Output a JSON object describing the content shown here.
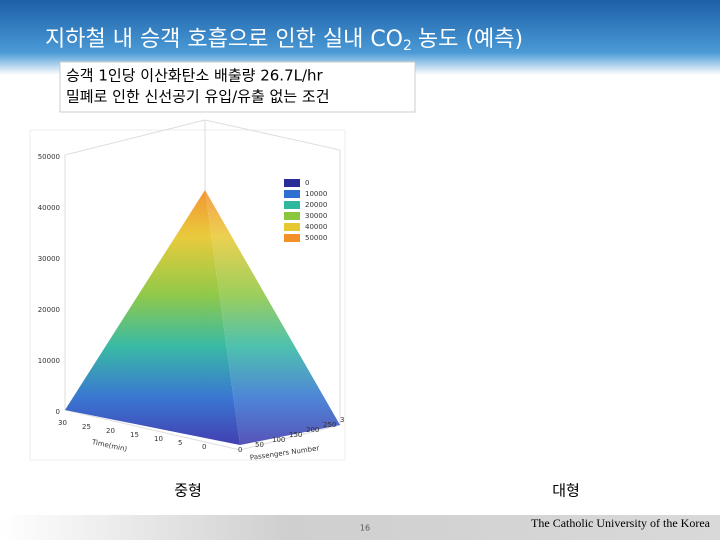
{
  "header": {
    "title_main": "지하철 내 승객 호흡으로 인한 실내 CO",
    "title_sub": "2",
    "title_end": "농도 (예측)"
  },
  "conditions": [
    "승객 1인당 이산화탄소 배출량 26.7L/hr",
    "밀폐로 인한  신선공기 유입/유출 없는 조건"
  ],
  "figure": {
    "z_ticks": [
      "50000",
      "40000",
      "30000",
      "20000",
      "10000",
      "0"
    ],
    "legend": [
      "0",
      "10000",
      "20000",
      "30000",
      "40000",
      "50000"
    ],
    "time_ticks": [
      "30",
      "25",
      "20",
      "15",
      "10",
      "5",
      "0"
    ],
    "time_label": "Time(min)",
    "passenger_ticks": [
      "0",
      "50",
      "100",
      "150",
      "200",
      "250",
      "3"
    ],
    "passenger_label": "Passengers Number"
  },
  "captions": [
    "중형",
    "대형"
  ],
  "footer": {
    "page": "16",
    "org": "The Catholic University of the Korea"
  }
}
